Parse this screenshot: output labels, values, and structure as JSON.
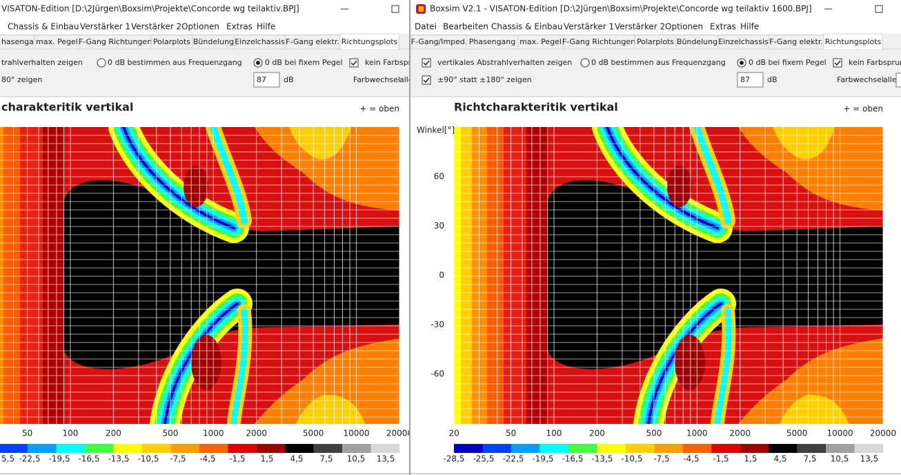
{
  "left_window": {
    "title": "VISATON-Edition [D:\\2Jürgen\\Boxsim\\Projekte\\Concorde wg teilaktiv.BPJ]",
    "menu": [
      "Chassis & Einbau",
      "Verstärker 1",
      "Verstärker 2",
      "Optionen",
      "Extras",
      "Hilfe"
    ],
    "tabs": [
      "hasengang",
      "max. Pegel",
      "F-Gang Richtungen",
      "Polarplots",
      "Bündelung",
      "Einzelchassis",
      "F-Gang elektr.",
      "Richtungsplots"
    ],
    "options": [
      "trahlverhalten zeigen",
      "0 dB bestimmen aus Frequenzgang",
      "0 dB bei fixem Pegel",
      "kein Farbsprun",
      "80° zeigen"
    ],
    "level": "87",
    "level_unit": "dB",
    "color_change": "Farbwechsel",
    "color_change_value": "alle",
    "plot": {
      "title": "charakteritik vertikal",
      "orientation": "+ = oben",
      "xticks": [
        "50",
        "100",
        "200",
        "500",
        "1000",
        "2000",
        "5000",
        "10000",
        "20000"
      ],
      "colorbar": [
        "5,5",
        "-22,5",
        "-19,5",
        "-16,5",
        "-13,5",
        "-10,5",
        "-7,5",
        "-4,5",
        "-1,5",
        "1,5",
        "4,5",
        "7,5",
        "10,5",
        "13,5"
      ]
    }
  },
  "right_window": {
    "title": "Boxsim V2.1 - VISATON-Edition [D:\\2Jürgen\\Boxsim\\Projekte\\Concorde wg teilaktiv 1600.BPJ]",
    "menu": [
      "Datei",
      "Bearbeiten",
      "Chassis & Einbau",
      "Verstärker 1",
      "Verstärker 2",
      "Optionen",
      "Extras",
      "Hilfe"
    ],
    "tabs": [
      "F-Gang/Imped.",
      "Phasengang",
      "max. Pegel",
      "F-Gang Richtungen",
      "Polarplots",
      "Bündelung",
      "Einzelchassis",
      "F-Gang elektr.",
      "Richtungsplots"
    ],
    "options": [
      "vertikales Abstrahlverhalten zeigen",
      "0 dB bestimmen aus Frequenzgang",
      "0 dB bei fixem Pegel",
      "kein Farbsprung",
      "±90° statt ±180° zeigen"
    ],
    "level": "87",
    "level_unit": "dB",
    "color_change": "Farbwechsel",
    "color_change_value": "alle",
    "plot": {
      "title": "Richtcharakteritik vertikal",
      "orientation": "+ = oben",
      "y_label": "Winkel[°]",
      "yticks": [
        "60",
        "30",
        "0",
        "-30",
        "-60"
      ],
      "xticks": [
        "20",
        "50",
        "100",
        "200",
        "500",
        "1000",
        "2000",
        "5000",
        "10000",
        "20000"
      ],
      "colorbar": [
        "-28,5",
        "-25,5",
        "-22,5",
        "-19,5",
        "-16,5",
        "-13,5",
        "-10,5",
        "-7,5",
        "-4,5",
        "-1,5",
        "1,5",
        "4,5",
        "7,5",
        "10,5",
        "13,5"
      ]
    }
  }
}
